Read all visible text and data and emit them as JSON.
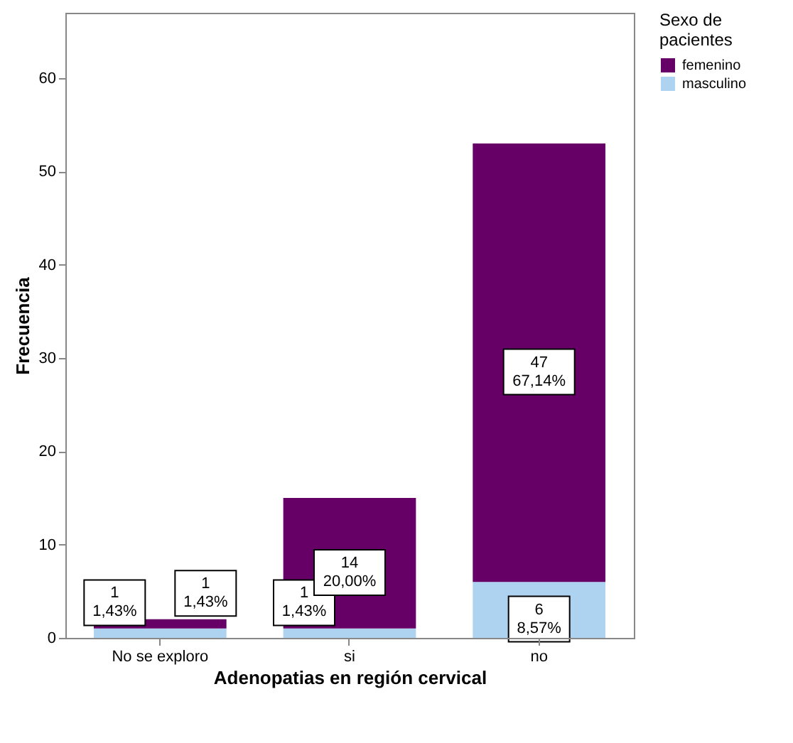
{
  "chart_data": {
    "type": "bar",
    "stacked": true,
    "xlabel": "Adenopatias en región cervical",
    "ylabel": "Frecuencia",
    "legend_title": "Sexo de pacientes",
    "legend": "top right",
    "categories": [
      "No se exploro",
      "si",
      "no"
    ],
    "series": [
      {
        "name": "masculino",
        "color": "#aed3f0",
        "values": [
          1,
          1,
          6
        ],
        "value_labels": [
          "1\n1,43%",
          "1\n1,43%",
          "6\n8,57%"
        ]
      },
      {
        "name": "femenino",
        "color": "#660066",
        "values": [
          1,
          14,
          47
        ],
        "value_labels": [
          "1\n1,43%",
          "14\n20,00%",
          "47\n67,14%"
        ]
      }
    ],
    "ylim": [
      0,
      67
    ],
    "yticks": [
      0,
      10,
      20,
      30,
      40,
      50,
      60
    ],
    "grid": false
  }
}
